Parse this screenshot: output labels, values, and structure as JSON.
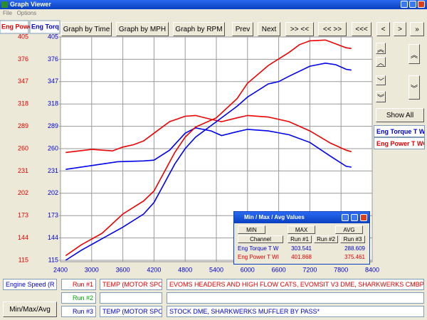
{
  "window": {
    "title": "Graph Viewer",
    "menu": [
      "File",
      "Options"
    ]
  },
  "toolbar": [
    "Graph by Time",
    "Graph by MPH",
    "Graph by RPM",
    "Prev",
    "Next",
    ">> <<",
    "<< >>",
    "<<<",
    "<",
    ">",
    "»"
  ],
  "show_all": "Show All",
  "chart_data": {
    "type": "line",
    "ylabel": "Eng Powe",
    "y2label": "Eng Torq",
    "xlim": [
      2400,
      8400
    ],
    "xticks": [
      2400,
      3000,
      3600,
      4200,
      4800,
      5400,
      6000,
      6600,
      7200,
      7800,
      8400
    ],
    "ylim": [
      115,
      405
    ],
    "yticks": [
      405,
      376,
      347,
      318,
      289,
      260,
      231,
      202,
      173,
      144,
      115
    ],
    "y2lim": [
      115,
      405
    ],
    "y2ticks": [
      405,
      376,
      347,
      318,
      289,
      260,
      231,
      202,
      173,
      144,
      115
    ],
    "grid": true,
    "legend": [
      {
        "name": "Eng Torque T W",
        "color": "#0000cc"
      },
      {
        "name": "Eng Power T WC",
        "color": "#e00000"
      }
    ],
    "series": [
      {
        "color": "#0000ee",
        "axis": "y2",
        "x": [
          2500,
          3000,
          3500,
          4000,
          4200,
          4500,
          4800,
          5000,
          5300,
          5500,
          5800,
          6000,
          6400,
          6800,
          7200,
          7600,
          7900,
          8000
        ],
        "values": [
          233,
          238,
          243,
          244,
          245,
          258,
          280,
          287,
          283,
          277,
          282,
          285,
          283,
          278,
          268,
          250,
          237,
          236
        ]
      },
      {
        "color": "#ee0000",
        "axis": "y",
        "x": [
          2500,
          3000,
          3400,
          3600,
          3800,
          4000,
          4200,
          4500,
          4800,
          5000,
          5300,
          5500,
          5800,
          6000,
          6400,
          6800,
          7200,
          7600,
          7900,
          8000
        ],
        "values": [
          255,
          259,
          257,
          262,
          265,
          270,
          280,
          295,
          302,
          303,
          298,
          295,
          300,
          303,
          301,
          295,
          283,
          267,
          258,
          256
        ]
      },
      {
        "color": "#0000ee",
        "axis": "y2",
        "x": [
          2500,
          2800,
          3200,
          3600,
          4000,
          4200,
          4400,
          4600,
          4800,
          5000,
          5400,
          5800,
          6000,
          6400,
          6600,
          6800,
          7200,
          7500,
          7700,
          7900,
          8000
        ],
        "values": [
          115,
          128,
          143,
          158,
          175,
          190,
          215,
          240,
          260,
          275,
          295,
          315,
          327,
          344,
          347,
          354,
          367,
          371,
          369,
          363,
          362
        ]
      },
      {
        "color": "#ee0000",
        "axis": "y",
        "x": [
          2500,
          2800,
          3200,
          3600,
          4000,
          4200,
          4400,
          4600,
          4800,
          5000,
          5400,
          5800,
          6000,
          6400,
          6800,
          7000,
          7200,
          7500,
          7700,
          7900,
          8000
        ],
        "values": [
          121,
          135,
          150,
          175,
          192,
          205,
          230,
          255,
          275,
          288,
          300,
          325,
          345,
          368,
          385,
          395,
          400,
          401,
          396,
          391,
          390
        ]
      }
    ]
  },
  "bottom": {
    "x_channel": "Engine Speed (R",
    "min_max_button": "Min/Max/Avg",
    "runs": [
      {
        "label": "Run #1",
        "channel": "TEMP (MOTOR SPOI",
        "notes": "EVOMS HEADERS AND HIGH FLOW CATS, EVOMSIT V3 DME, SHARKWERKS CMBPP"
      },
      {
        "label": "Run #2"
      },
      {
        "label": "Run #3",
        "channel": "TEMP (MOTOR SPOI",
        "notes": "STOCK DME, SHARKWERKS MUFFLER BY PASS*"
      }
    ]
  },
  "dialog": {
    "title": "Min / Max / Avg Values",
    "tabs": [
      "MIN",
      "MAX",
      "AVG"
    ],
    "header": [
      "Channel",
      "Run #1",
      "Run #2",
      "Run #3"
    ],
    "rows": [
      {
        "channel": "Eng Torque T W",
        "run1": "303.541",
        "run3": "288.609"
      },
      {
        "channel": "Eng Power T WI",
        "run1": "401.868",
        "run3": "375.461"
      }
    ]
  }
}
